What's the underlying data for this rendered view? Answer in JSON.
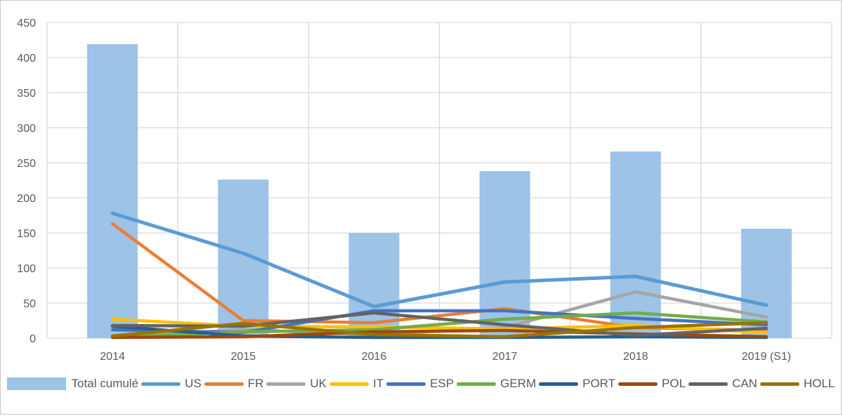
{
  "chart_data": {
    "type": "combo-bar-line",
    "title": "",
    "xlabel": "",
    "ylabel": "",
    "categories": [
      "2014",
      "2015",
      "2016",
      "2017",
      "2018",
      "2019 (S1)"
    ],
    "ylim": [
      0,
      450
    ],
    "y_ticks": [
      0,
      50,
      100,
      150,
      200,
      250,
      300,
      350,
      400,
      450
    ],
    "grid": true,
    "legend_position": "bottom",
    "bar_series": {
      "name": "Total cumulé",
      "color": "#9DC3E6",
      "values": [
        419,
        226,
        150,
        238,
        266,
        156
      ]
    },
    "line_series": [
      {
        "name": "US",
        "color": "#5B9BD5",
        "values": [
          178,
          121,
          45,
          80,
          88,
          47
        ]
      },
      {
        "name": "FR",
        "color": "#ED7D31",
        "values": [
          163,
          25,
          22,
          42,
          15,
          11
        ]
      },
      {
        "name": "UK",
        "color": "#A5A5A5",
        "values": [
          2,
          12,
          5,
          15,
          66,
          30
        ]
      },
      {
        "name": "IT",
        "color": "#FFC000",
        "values": [
          27,
          17,
          16,
          13,
          18,
          8
        ]
      },
      {
        "name": "ESP",
        "color": "#4472C4",
        "values": [
          12,
          8,
          39,
          39,
          28,
          19
        ]
      },
      {
        "name": "GERM",
        "color": "#70AD47",
        "values": [
          1,
          9,
          12,
          27,
          36,
          23
        ]
      },
      {
        "name": "PORT",
        "color": "#255E91",
        "values": [
          17,
          3,
          1,
          1,
          2,
          1
        ]
      },
      {
        "name": "POL",
        "color": "#9E480E",
        "values": [
          1,
          2,
          9,
          11,
          6,
          2
        ]
      },
      {
        "name": "CAN",
        "color": "#636363",
        "values": [
          18,
          17,
          36,
          19,
          4,
          14
        ]
      },
      {
        "name": "HOLL",
        "color": "#997300",
        "values": [
          3,
          21,
          5,
          2,
          15,
          22
        ]
      }
    ]
  },
  "colors": {
    "grid": "#D9D9D9",
    "axis_text": "#595959",
    "background": "#FFFFFF",
    "frame_border": "#C8C8C8"
  }
}
